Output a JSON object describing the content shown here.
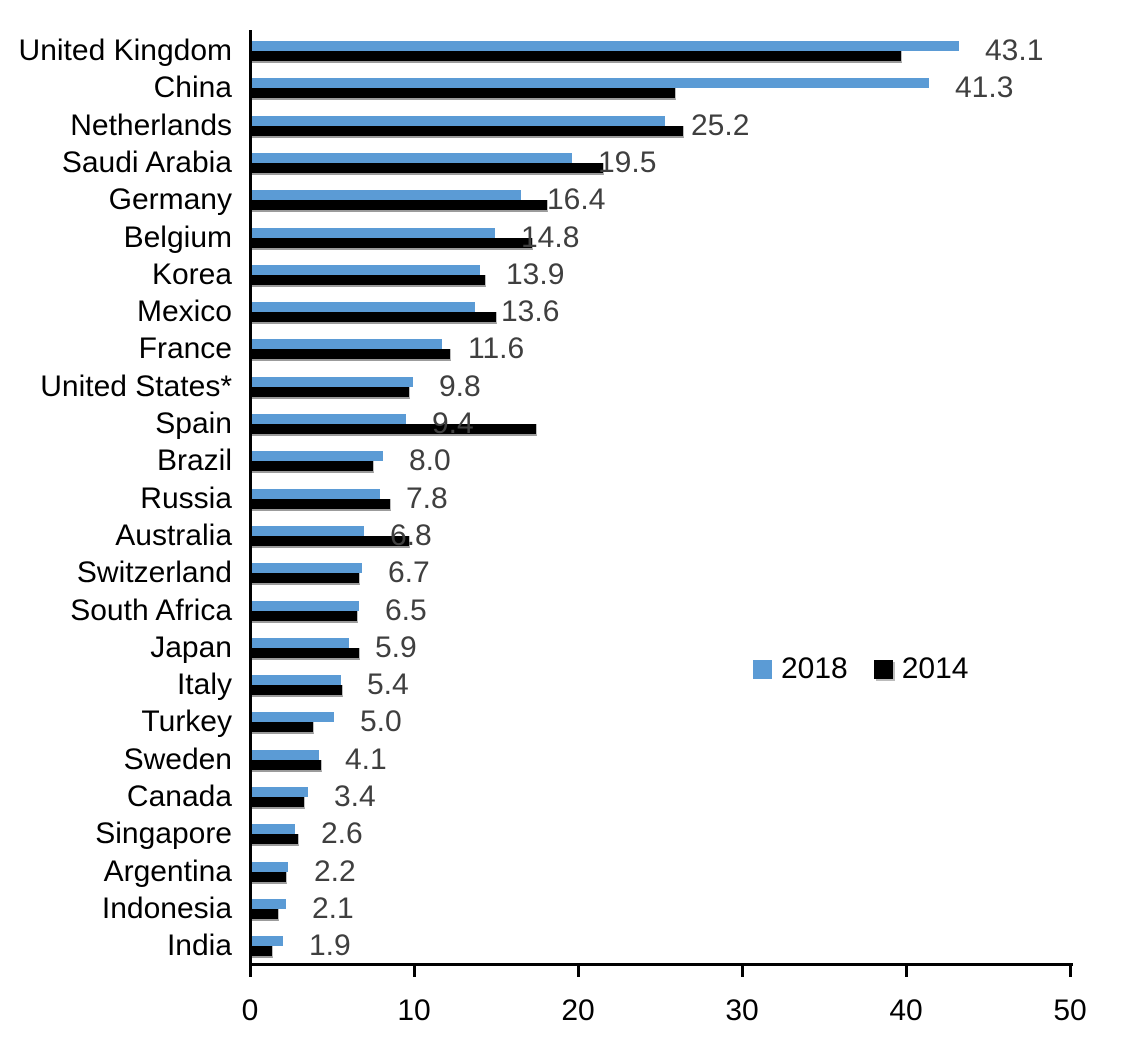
{
  "chart_data": {
    "type": "bar",
    "orientation": "horizontal",
    "title": "",
    "categories": [
      "United Kingdom",
      "China",
      "Netherlands",
      "Saudi Arabia",
      "Germany",
      "Belgium",
      "Korea",
      "Mexico",
      "France",
      "United States*",
      "Spain",
      "Brazil",
      "Russia",
      "Australia",
      "Switzerland",
      "South Africa",
      "Japan",
      "Italy",
      "Turkey",
      "Sweden",
      "Canada",
      "Singapore",
      "Argentina",
      "Indonesia",
      "India"
    ],
    "series": [
      {
        "name": "2018",
        "color": "#5B9BD5",
        "values": [
          43.1,
          41.3,
          25.2,
          19.5,
          16.4,
          14.8,
          13.9,
          13.6,
          11.6,
          9.8,
          9.4,
          8.0,
          7.8,
          6.8,
          6.7,
          6.5,
          5.9,
          5.4,
          5.0,
          4.1,
          3.4,
          2.6,
          2.2,
          2.1,
          1.9
        ]
      },
      {
        "name": "2014",
        "color": "#000000",
        "values_estimated_from_axis": true,
        "values": [
          39.6,
          25.8,
          26.3,
          21.4,
          18.0,
          17.1,
          14.2,
          14.9,
          12.1,
          9.6,
          17.3,
          7.4,
          8.4,
          9.6,
          6.5,
          6.4,
          6.5,
          5.5,
          3.7,
          4.2,
          3.2,
          2.8,
          2.1,
          1.6,
          1.2
        ]
      }
    ],
    "value_labels": [
      "43.1",
      "41.3",
      "25.2",
      "19.5",
      "16.4",
      "14.8",
      "13.9",
      "13.6",
      "11.6",
      "9.8",
      "9.4",
      "8.0",
      "7.8",
      "6.8",
      "6.7",
      "6.5",
      "5.9",
      "5.4",
      "5.0",
      "4.1",
      "3.4",
      "2.6",
      "2.2",
      "2.1",
      "1.9"
    ],
    "value_labels_series": "2018",
    "xlabel": "",
    "ylabel": "",
    "xlim": [
      0,
      50
    ],
    "x_ticks": [
      "0",
      "10",
      "20",
      "30",
      "40",
      "50"
    ],
    "grid": false,
    "legend": {
      "position": "center-right",
      "entries": [
        {
          "label": "2018",
          "color": "#5B9BD5"
        },
        {
          "label": "2014",
          "color": "#000000"
        }
      ]
    }
  },
  "colors": {
    "bar_2018": "#5B9BD5",
    "bar_2014": "#000000",
    "value_label": "#3F3F3F",
    "axis": "#000000",
    "bar_shadow": "#9B9B9B",
    "background": "#FFFFFF"
  }
}
